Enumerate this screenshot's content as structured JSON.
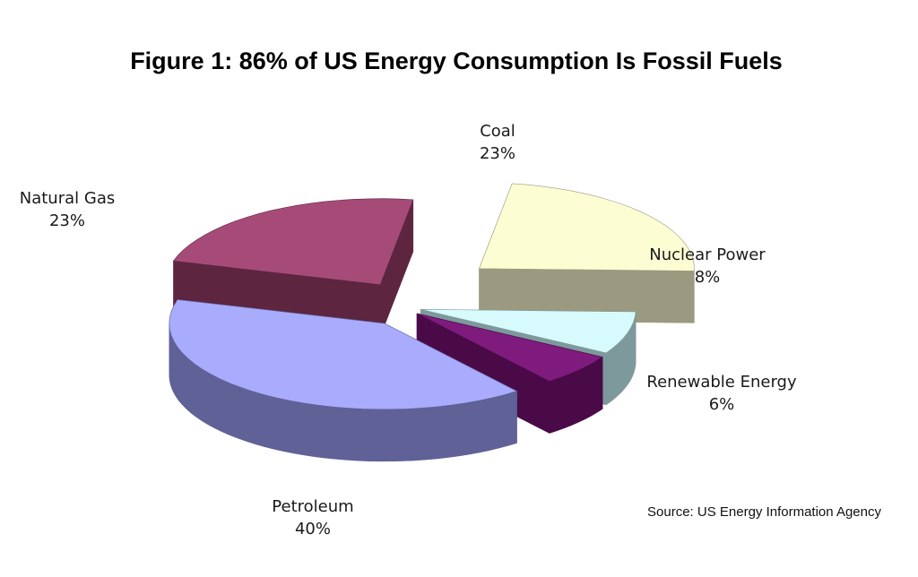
{
  "chart_data": {
    "type": "pie",
    "title": "Figure 1: 86% of US Energy Consumption Is Fossil Fuels",
    "source": "Source: US Energy Information Agency",
    "slices": [
      {
        "name": "Natural Gas",
        "value": 23,
        "value_label": "23%",
        "colors": {
          "top": "#a64b78",
          "side": "#5d2540"
        }
      },
      {
        "name": "Coal",
        "value": 23,
        "value_label": "23%",
        "colors": {
          "top": "#fdfdd4",
          "side": "#9b9a80"
        }
      },
      {
        "name": "Nuclear Power",
        "value": 8,
        "value_label": "8%",
        "colors": {
          "top": "#d7fbfd",
          "side": "#7d999c"
        }
      },
      {
        "name": "Renewable Energy",
        "value": 6,
        "value_label": "6%",
        "colors": {
          "top": "#7e1b7d",
          "side": "#4a0a48"
        }
      },
      {
        "name": "Petroleum",
        "value": 40,
        "value_label": "40%",
        "colors": {
          "top": "#a9abfd",
          "side": "#5f6197"
        }
      }
    ],
    "style": "3d-exploded"
  }
}
